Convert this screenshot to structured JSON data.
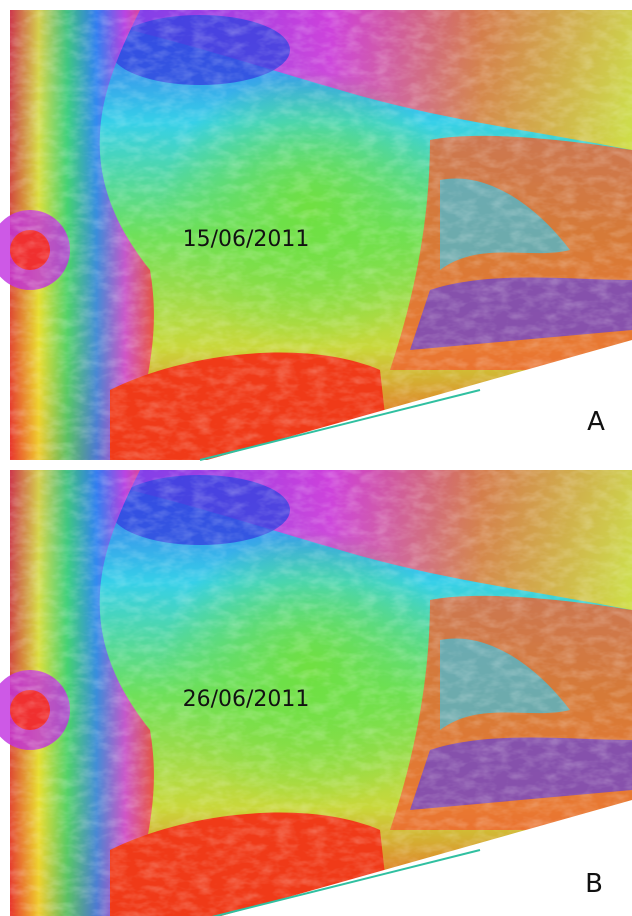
{
  "panels": [
    {
      "date": "15/06/2011",
      "label": "A"
    },
    {
      "date": "26/06/2011",
      "label": "B"
    }
  ]
}
